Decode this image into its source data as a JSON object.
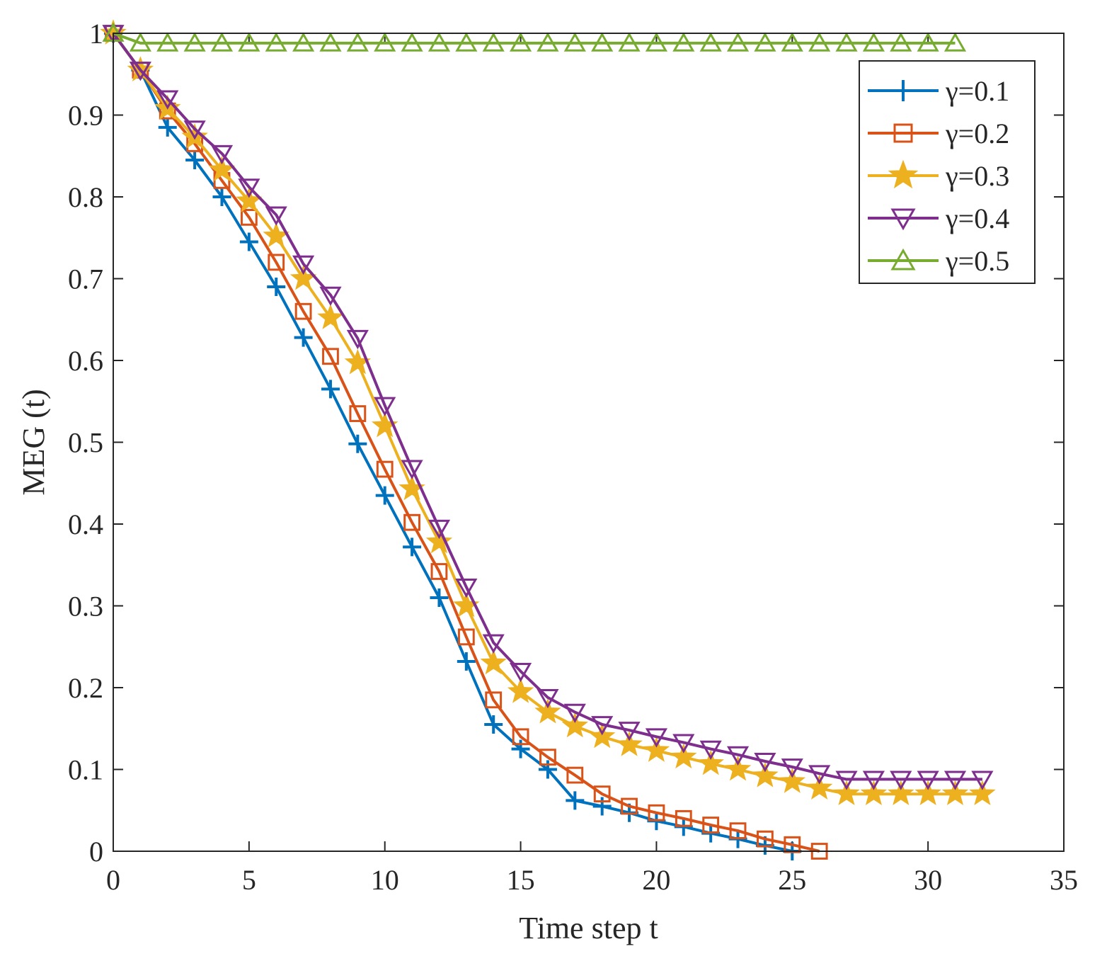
{
  "chart_data": {
    "type": "line",
    "title": "",
    "xlabel": "Time step t",
    "ylabel": "MEG (t)",
    "xlim": [
      0,
      35
    ],
    "ylim": [
      0,
      1
    ],
    "xticks": [
      0,
      5,
      10,
      15,
      20,
      25,
      30,
      35
    ],
    "yticks": [
      0,
      0.1,
      0.2,
      0.3,
      0.4,
      0.5,
      0.6,
      0.7,
      0.8,
      0.9,
      1
    ],
    "ytick_labels": [
      "0",
      "0.1",
      "0.2",
      "0.3",
      "0.4",
      "0.5",
      "0.6",
      "0.7",
      "0.8",
      "0.9",
      "1"
    ],
    "grid": false,
    "legend_position": "top-right",
    "series": [
      {
        "name": "γ=0.1",
        "color": "#0072BD",
        "marker": "plus",
        "x": [
          0,
          1,
          2,
          3,
          4,
          5,
          6,
          7,
          8,
          9,
          10,
          11,
          12,
          13,
          14,
          15,
          16,
          17,
          18,
          19,
          20,
          21,
          22,
          23,
          24,
          25
        ],
        "values": [
          1.0,
          0.955,
          0.885,
          0.845,
          0.8,
          0.745,
          0.69,
          0.628,
          0.565,
          0.498,
          0.435,
          0.372,
          0.31,
          0.232,
          0.155,
          0.125,
          0.1,
          0.062,
          0.055,
          0.047,
          0.037,
          0.03,
          0.022,
          0.015,
          0.007,
          0.0
        ]
      },
      {
        "name": "γ=0.2",
        "color": "#D95319",
        "marker": "square",
        "x": [
          0,
          1,
          2,
          3,
          4,
          5,
          6,
          7,
          8,
          9,
          10,
          11,
          12,
          13,
          14,
          15,
          16,
          17,
          18,
          19,
          20,
          21,
          22,
          23,
          24,
          25,
          26
        ],
        "values": [
          1.0,
          0.955,
          0.905,
          0.865,
          0.82,
          0.775,
          0.72,
          0.66,
          0.605,
          0.535,
          0.467,
          0.402,
          0.342,
          0.262,
          0.185,
          0.14,
          0.115,
          0.093,
          0.07,
          0.055,
          0.047,
          0.04,
          0.032,
          0.025,
          0.015,
          0.008,
          0.0
        ]
      },
      {
        "name": "γ=0.3",
        "color": "#EDB120",
        "marker": "star",
        "x": [
          0,
          1,
          2,
          3,
          4,
          5,
          6,
          7,
          8,
          9,
          10,
          11,
          12,
          13,
          14,
          15,
          16,
          17,
          18,
          19,
          20,
          21,
          22,
          23,
          24,
          25,
          26,
          27,
          28,
          29,
          30,
          31,
          32
        ],
        "values": [
          1.0,
          0.955,
          0.908,
          0.873,
          0.833,
          0.795,
          0.752,
          0.7,
          0.652,
          0.597,
          0.52,
          0.443,
          0.378,
          0.3,
          0.23,
          0.195,
          0.17,
          0.153,
          0.14,
          0.13,
          0.123,
          0.115,
          0.107,
          0.1,
          0.092,
          0.085,
          0.077,
          0.07,
          0.07,
          0.07,
          0.07,
          0.07,
          0.07
        ]
      },
      {
        "name": "γ=0.4",
        "color": "#7E2F8E",
        "marker": "triangle-down",
        "x": [
          0,
          1,
          2,
          3,
          4,
          5,
          6,
          7,
          8,
          9,
          10,
          11,
          12,
          13,
          14,
          15,
          16,
          17,
          18,
          19,
          20,
          21,
          22,
          23,
          24,
          25,
          26,
          27,
          28,
          29,
          30,
          31,
          32
        ],
        "values": [
          1.0,
          0.955,
          0.92,
          0.883,
          0.853,
          0.812,
          0.778,
          0.718,
          0.68,
          0.627,
          0.545,
          0.468,
          0.395,
          0.323,
          0.255,
          0.22,
          0.188,
          0.17,
          0.155,
          0.148,
          0.14,
          0.133,
          0.125,
          0.118,
          0.11,
          0.103,
          0.095,
          0.088,
          0.088,
          0.088,
          0.088,
          0.088,
          0.088
        ]
      },
      {
        "name": "γ=0.5",
        "color": "#77AC30",
        "marker": "triangle-up",
        "x": [
          0,
          1,
          2,
          3,
          4,
          5,
          6,
          7,
          8,
          9,
          10,
          11,
          12,
          13,
          14,
          15,
          16,
          17,
          18,
          19,
          20,
          21,
          22,
          23,
          24,
          25,
          26,
          27,
          28,
          29,
          30,
          31
        ],
        "values": [
          1.0,
          0.988,
          0.988,
          0.988,
          0.988,
          0.988,
          0.988,
          0.988,
          0.988,
          0.988,
          0.988,
          0.988,
          0.988,
          0.988,
          0.988,
          0.988,
          0.988,
          0.988,
          0.988,
          0.988,
          0.988,
          0.988,
          0.988,
          0.988,
          0.988,
          0.988,
          0.988,
          0.988,
          0.988,
          0.988,
          0.988,
          0.988
        ]
      }
    ]
  }
}
